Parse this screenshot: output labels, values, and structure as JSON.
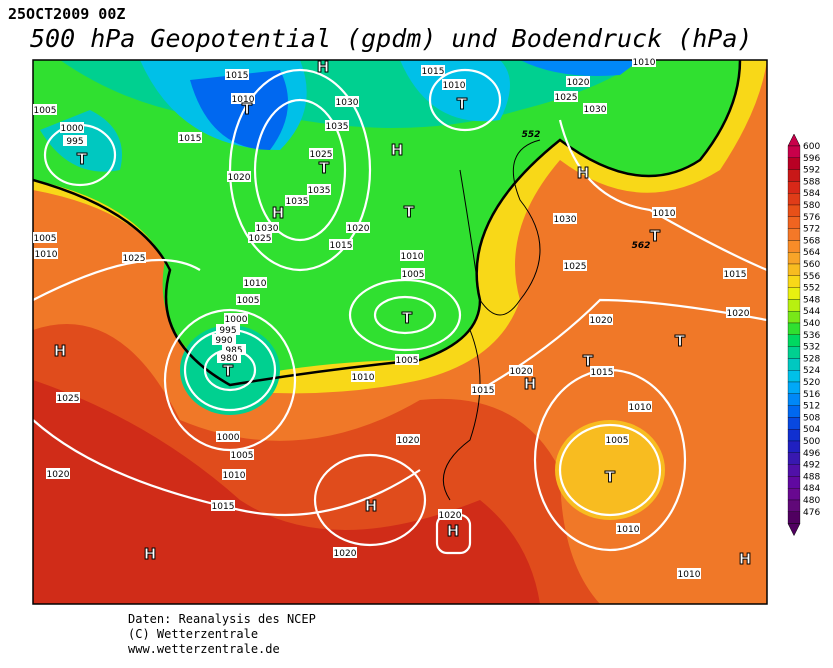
{
  "header": {
    "date": "25OCT2009 00Z",
    "title": "500 hPa Geopotential (gpdm) und Bodendruck (hPa)"
  },
  "map": {
    "isobar_labels": [
      1015,
      1010,
      1015,
      1020,
      1005,
      1000,
      995,
      1030,
      1035,
      1025,
      1035,
      1035,
      1030,
      1025,
      1020,
      1015,
      1010,
      1010,
      1005,
      1005,
      1000,
      995,
      990,
      985,
      980,
      1005,
      1010,
      1025,
      1025,
      1020,
      1010,
      1005,
      1015,
      1000,
      1005,
      1010,
      1015,
      1020,
      1020,
      1020,
      1020,
      1015,
      1010,
      1005,
      1010,
      1010,
      1030,
      1025,
      1020,
      1020,
      1015,
      1010,
      1010,
      1020,
      1025,
      1030,
      1015,
      1010
    ],
    "contour_labels": [
      552,
      562
    ],
    "centers": [
      "H",
      "T",
      "T",
      "H",
      "T",
      "H",
      "T",
      "T",
      "H",
      "T",
      "T",
      "H",
      "T",
      "T",
      "H",
      "T",
      "T",
      "H",
      "H",
      "H",
      "H"
    ]
  },
  "colorbar": {
    "ticks": [
      600,
      596,
      592,
      588,
      584,
      580,
      576,
      572,
      568,
      564,
      560,
      556,
      552,
      548,
      544,
      540,
      536,
      532,
      528,
      524,
      520,
      516,
      512,
      508,
      504,
      500,
      496,
      492,
      488,
      484,
      480,
      476
    ],
    "colors": [
      "#c8004a",
      "#b80024",
      "#c81818",
      "#d82818",
      "#e03c18",
      "#e85018",
      "#f06420",
      "#f47828",
      "#f88c28",
      "#f8a428",
      "#f8bc20",
      "#f8d818",
      "#e8f010",
      "#b8f010",
      "#78e818",
      "#30e030",
      "#00d860",
      "#00d090",
      "#00c8c0",
      "#00c0e8",
      "#00a8f8",
      "#0088f8",
      "#0068f0",
      "#0848e0",
      "#1030d0",
      "#2020c0",
      "#3818b0",
      "#5010a8",
      "#6008a0",
      "#680890",
      "#600878",
      "#500060"
    ]
  },
  "footer": [
    "Daten: Reanalysis des NCEP",
    "(C) Wetterzentrale",
    "www.wetterzentrale.de"
  ]
}
